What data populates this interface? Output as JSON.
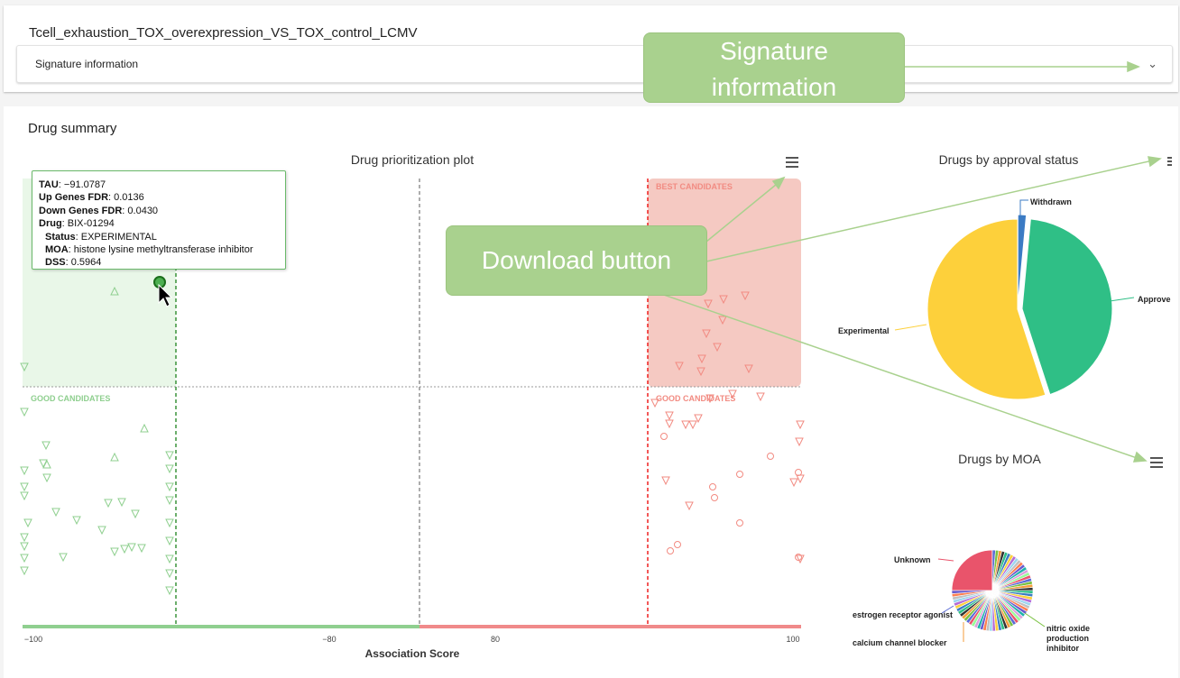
{
  "signature": {
    "title": "Tcell_exhaustion_TOX_overexpression_VS_TOX_control_LCMV",
    "expander_label": "Signature information"
  },
  "drug_summary": {
    "title": "Drug summary"
  },
  "callouts": {
    "signature_info_line1": "Signature",
    "signature_info_line2": "information",
    "download_button": "Download button"
  },
  "tooltip": {
    "tau_label": "TAU",
    "tau_value": ": −91.0787",
    "up_label": "Up Genes FDR",
    "up_value": ": 0.0136",
    "down_label": "Down Genes FDR",
    "down_value": ": 0.0430",
    "drug_label": "Drug",
    "drug_value": ": BIX-01294",
    "status_label": "Status",
    "status_value": ": EXPERIMENTAL",
    "moa_label": "MOA",
    "moa_value": ": histone lysine methyltransferase inhibitor",
    "dss_label": "DSS",
    "dss_value": ": 0.5964"
  },
  "colors": {
    "good_green": "#6ab96a",
    "best_red": "#e8463c",
    "experimental": "#fdd03b",
    "approved": "#2fbf86",
    "withdrawn": "#3b7bc4",
    "callout": "#a9d18e"
  },
  "chart_data": [
    {
      "type": "scatter",
      "title": "Drug prioritization plot",
      "xlabel": "Association Score",
      "x_ticks": [
        "−100",
        "−80",
        "80",
        "100"
      ],
      "regions": [
        "BEST CANDIDATES",
        "GOOD CANDIDATES",
        "GOOD CANDIDATES"
      ],
      "highlighted_point": {
        "drug": "BIX-01294",
        "tau": -91.0787
      },
      "menu_icon": "hamburger-menu-icon"
    },
    {
      "type": "pie",
      "title": "Drugs by approval status",
      "labels": [
        "Withdrawn",
        "Approve",
        "Experimental"
      ],
      "values": [
        1.5,
        43.5,
        55
      ],
      "menu_icon": "hamburger-menu-icon"
    },
    {
      "type": "pie",
      "title": "Drugs by MOA",
      "labels": [
        "Unknown",
        "estrogen receptor agonist",
        "calcium channel blocker",
        "nitric oxide production inhibitor"
      ],
      "menu_icon": "hamburger-menu-icon"
    }
  ]
}
